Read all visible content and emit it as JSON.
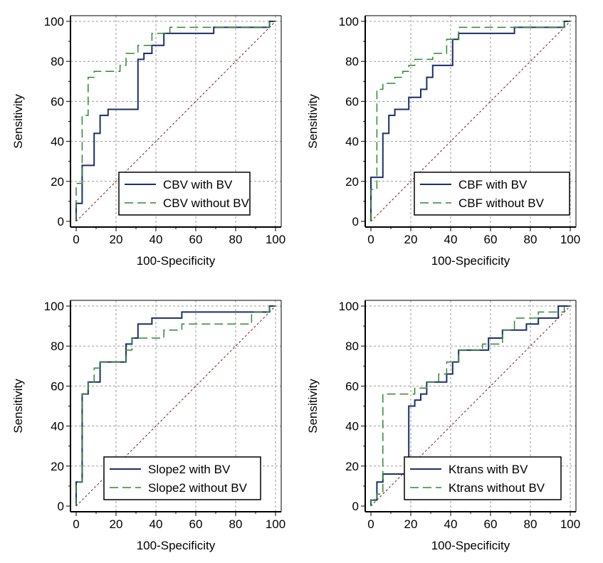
{
  "colors": {
    "with_bv": "#1a2f6e",
    "without_bv": "#2e8b2e",
    "reference": "#8b1a1a",
    "grid": "#9a9a9a"
  },
  "axis_ticks": [
    0,
    20,
    40,
    60,
    80,
    100
  ],
  "chart_data": [
    {
      "type": "line",
      "title": "",
      "xlabel": "100-Specificity",
      "ylabel": "Sensitivity",
      "xlim": [
        0,
        100
      ],
      "ylim": [
        0,
        100
      ],
      "grid": true,
      "legend": "bottom-right",
      "series": [
        {
          "name": "CBV with BV",
          "style": "solid",
          "x": [
            0,
            0,
            3,
            3,
            9,
            9,
            12,
            12,
            16,
            16,
            31,
            31,
            34,
            34,
            38,
            38,
            44,
            44,
            69,
            69,
            97,
            97,
            100
          ],
          "y": [
            0,
            9,
            9,
            28,
            28,
            44,
            44,
            53,
            53,
            56,
            56,
            81,
            81,
            84,
            84,
            88,
            88,
            94,
            94,
            97,
            97,
            100,
            100
          ]
        },
        {
          "name": "CBV without BV",
          "style": "dashed",
          "x": [
            0,
            0,
            3,
            3,
            6,
            6,
            9,
            9,
            22,
            22,
            25,
            25,
            31,
            31,
            38,
            38,
            47,
            47,
            97,
            97,
            100
          ],
          "y": [
            0,
            19,
            19,
            53,
            53,
            72,
            72,
            75,
            75,
            78,
            78,
            84,
            84,
            88,
            88,
            94,
            94,
            97,
            97,
            100,
            100
          ]
        },
        {
          "name": "Reference",
          "style": "dotted",
          "x": [
            0,
            100
          ],
          "y": [
            0,
            100
          ]
        }
      ]
    },
    {
      "type": "line",
      "title": "",
      "xlabel": "100-Specificity",
      "ylabel": "Sensitivity",
      "xlim": [
        0,
        100
      ],
      "ylim": [
        0,
        100
      ],
      "grid": true,
      "legend": "bottom-right",
      "series": [
        {
          "name": "CBF with BV",
          "style": "solid",
          "x": [
            0,
            0,
            6,
            6,
            9,
            9,
            12,
            12,
            19,
            19,
            25,
            25,
            28,
            28,
            31,
            31,
            41,
            41,
            44,
            44,
            72,
            72,
            97,
            97,
            100
          ],
          "y": [
            0,
            22,
            22,
            44,
            44,
            53,
            53,
            56,
            56,
            62,
            62,
            66,
            66,
            72,
            72,
            78,
            78,
            91,
            91,
            94,
            94,
            97,
            97,
            100,
            100
          ]
        },
        {
          "name": "CBF without BV",
          "style": "dashed",
          "x": [
            0,
            0,
            3,
            3,
            6,
            6,
            12,
            12,
            16,
            16,
            19,
            19,
            22,
            22,
            31,
            31,
            38,
            38,
            44,
            44,
            97,
            97,
            100
          ],
          "y": [
            0,
            16,
            16,
            66,
            66,
            69,
            69,
            72,
            72,
            75,
            75,
            78,
            78,
            81,
            81,
            84,
            84,
            91,
            91,
            97,
            97,
            100,
            100
          ]
        },
        {
          "name": "Reference",
          "style": "dotted",
          "x": [
            0,
            100
          ],
          "y": [
            0,
            100
          ]
        }
      ]
    },
    {
      "type": "line",
      "title": "",
      "xlabel": "100-Specificity",
      "ylabel": "Sensitivity",
      "xlim": [
        0,
        100
      ],
      "ylim": [
        0,
        100
      ],
      "grid": true,
      "legend": "bottom-right",
      "series": [
        {
          "name": "Slope2 with BV",
          "style": "solid",
          "x": [
            0,
            0,
            3,
            3,
            6,
            6,
            12,
            12,
            25,
            25,
            28,
            28,
            31,
            31,
            38,
            38,
            53,
            53,
            97,
            97,
            100
          ],
          "y": [
            0,
            12,
            12,
            56,
            56,
            62,
            62,
            72,
            72,
            81,
            81,
            84,
            84,
            91,
            91,
            94,
            94,
            97,
            97,
            100,
            100
          ]
        },
        {
          "name": "Slope2 without BV",
          "style": "dashed",
          "x": [
            0,
            0,
            3,
            3,
            6,
            6,
            9,
            9,
            12,
            12,
            25,
            25,
            28,
            28,
            44,
            44,
            53,
            53,
            88,
            88,
            97,
            97,
            100
          ],
          "y": [
            0,
            12,
            12,
            56,
            56,
            62,
            62,
            69,
            69,
            72,
            72,
            78,
            78,
            84,
            84,
            88,
            88,
            91,
            91,
            97,
            97,
            100,
            100
          ]
        },
        {
          "name": "Reference",
          "style": "dotted",
          "x": [
            0,
            100
          ],
          "y": [
            0,
            100
          ]
        }
      ]
    },
    {
      "type": "line",
      "title": "",
      "xlabel": "100-Specificity",
      "ylabel": "Sensitivity",
      "xlim": [
        0,
        100
      ],
      "ylim": [
        0,
        100
      ],
      "grid": true,
      "legend": "bottom-right",
      "series": [
        {
          "name": "Ktrans with BV",
          "style": "solid",
          "x": [
            0,
            0,
            3,
            3,
            6,
            6,
            19,
            19,
            22,
            22,
            25,
            25,
            28,
            28,
            38,
            38,
            41,
            41,
            44,
            44,
            59,
            59,
            66,
            66,
            78,
            78,
            84,
            84,
            94,
            94,
            100
          ],
          "y": [
            0,
            3,
            3,
            12,
            12,
            16,
            16,
            50,
            50,
            53,
            53,
            56,
            56,
            62,
            62,
            66,
            66,
            72,
            72,
            78,
            78,
            84,
            84,
            88,
            88,
            91,
            91,
            94,
            94,
            100,
            100
          ]
        },
        {
          "name": "Ktrans without BV",
          "style": "dashed",
          "x": [
            0,
            0,
            3,
            3,
            6,
            6,
            22,
            22,
            28,
            28,
            34,
            34,
            38,
            38,
            44,
            44,
            56,
            56,
            66,
            66,
            72,
            72,
            84,
            84,
            97,
            97,
            100
          ],
          "y": [
            0,
            3,
            3,
            6,
            6,
            56,
            56,
            59,
            59,
            62,
            62,
            66,
            66,
            72,
            72,
            78,
            78,
            81,
            81,
            88,
            88,
            94,
            94,
            97,
            97,
            100,
            100
          ]
        },
        {
          "name": "Reference",
          "style": "dotted",
          "x": [
            0,
            100
          ],
          "y": [
            0,
            100
          ]
        }
      ]
    }
  ]
}
